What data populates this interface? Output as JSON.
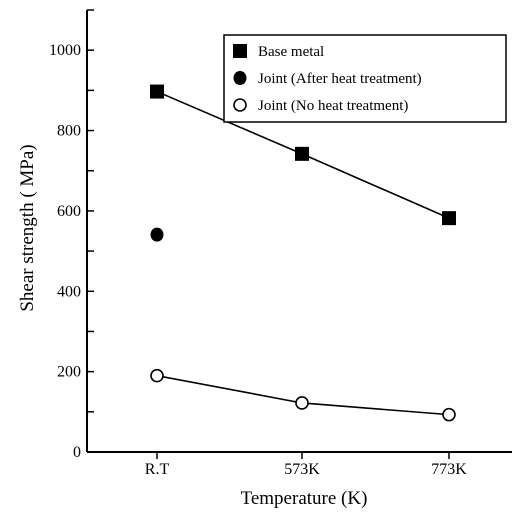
{
  "chart_data": {
    "type": "line",
    "title": "",
    "xlabel": "Temperature (K)",
    "ylabel": "Shear strength ( MPa)",
    "categories": [
      "R.T",
      "573K",
      "773K"
    ],
    "ylim": [
      0,
      1100
    ],
    "yticks": [
      0,
      200,
      400,
      600,
      800,
      1000
    ],
    "series": [
      {
        "name": "Base metal",
        "marker": "filled-square",
        "connected": true,
        "values": [
          897,
          742,
          582
        ]
      },
      {
        "name": "Joint (After heat treatment)",
        "marker": "filled-circle",
        "connected": false,
        "values": [
          541,
          null,
          null
        ]
      },
      {
        "name": "Joint (No heat treatment)",
        "marker": "open-circle",
        "connected": true,
        "values": [
          190,
          122,
          93
        ]
      }
    ],
    "legend": {
      "placement": "top-right"
    },
    "grid": false,
    "colors": {
      "ink": "#000000",
      "background": "#ffffff"
    }
  }
}
